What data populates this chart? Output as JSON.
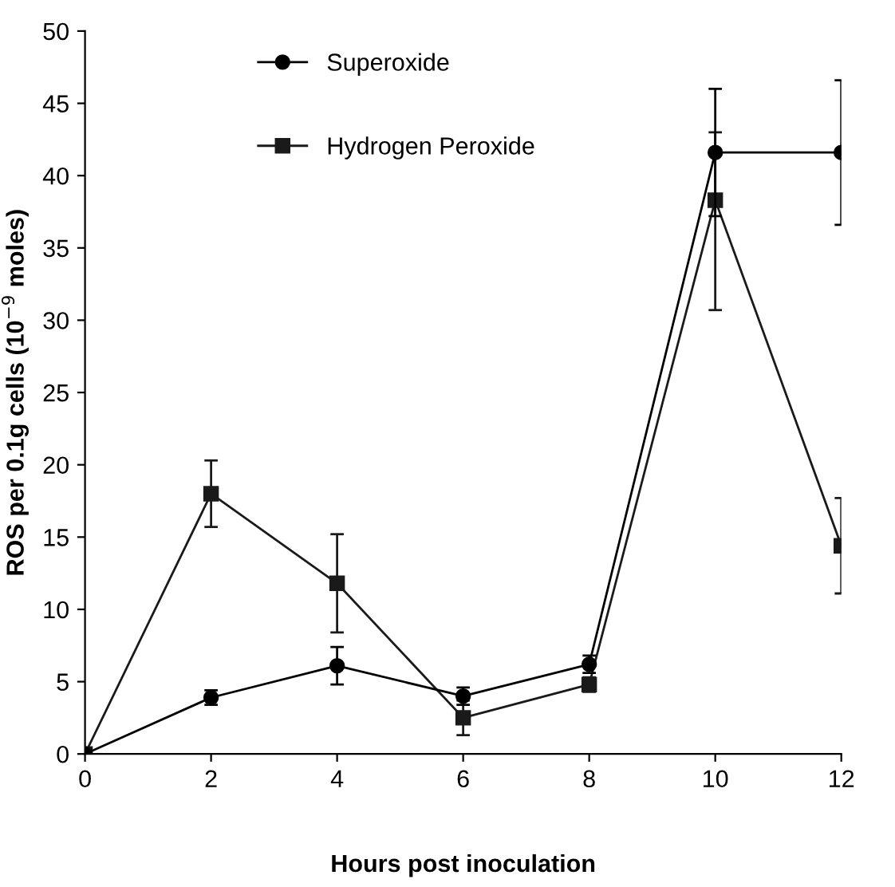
{
  "chart_data": {
    "type": "line",
    "xlabel": "Hours post inoculation",
    "ylabel": "ROS per 0.1g cells (10$^{−9}$ moles)",
    "x": [
      0,
      2,
      4,
      6,
      8,
      10,
      12
    ],
    "xlim": [
      0,
      12
    ],
    "xticks": [
      0,
      2,
      4,
      6,
      8,
      10,
      12
    ],
    "ylim": [
      0,
      50
    ],
    "yticks": [
      0,
      5,
      10,
      15,
      20,
      25,
      30,
      35,
      40,
      45,
      50
    ],
    "grid": false,
    "legend": "top left",
    "line_style": "solid",
    "series": [
      {
        "name": "Superoxide",
        "color": "#000000",
        "marker": "circle",
        "values": [
          0,
          3.9,
          6.1,
          4.0,
          6.2,
          41.6,
          41.6
        ],
        "errors": [
          null,
          0.5,
          1.3,
          0.6,
          0.6,
          4.4,
          5.0
        ]
      },
      {
        "name": "Hydrogen Peroxide",
        "color": "#1a1a1a",
        "marker": "square",
        "values": [
          0,
          18.0,
          11.8,
          2.5,
          4.8,
          38.3,
          14.4
        ],
        "errors": [
          null,
          2.3,
          3.4,
          1.2,
          0.5,
          [
            30.7,
            43.0
          ],
          3.3
        ]
      }
    ]
  }
}
